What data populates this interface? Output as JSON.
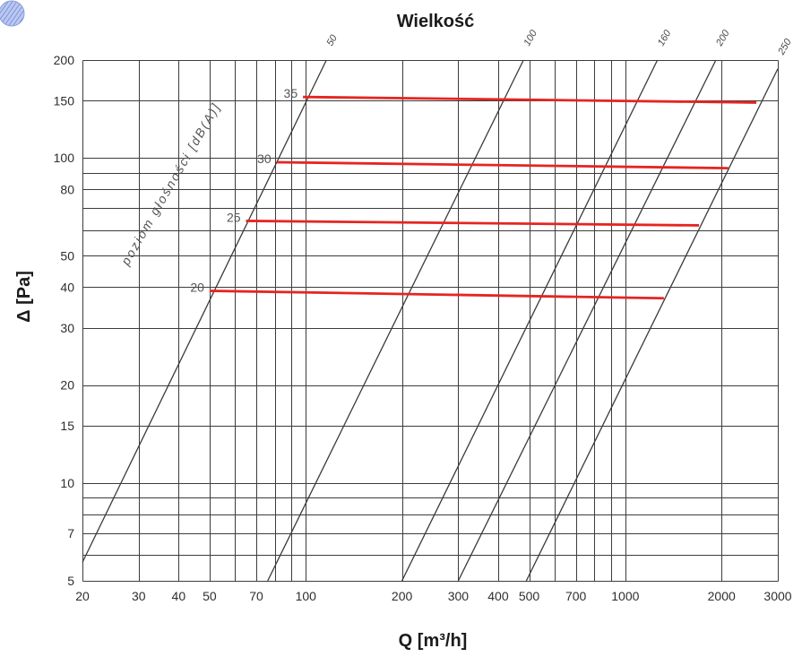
{
  "decoration": {
    "icon": "decorative-disc-icon"
  },
  "chart_data": {
    "type": "line",
    "title": "Wielkość",
    "xlabel": "Q [m³/h]",
    "ylabel": "Δ [Pa]",
    "x_scale": "log",
    "y_scale": "log",
    "xlim": [
      20,
      3000
    ],
    "ylim": [
      5,
      200
    ],
    "grid": true,
    "x_ticks": [
      20,
      30,
      40,
      50,
      70,
      100,
      200,
      300,
      400,
      500,
      700,
      1000,
      2000,
      3000
    ],
    "y_ticks": [
      5,
      7,
      10,
      15,
      20,
      30,
      40,
      50,
      80,
      100,
      150,
      200
    ],
    "x_gridlines": [
      20,
      30,
      40,
      50,
      60,
      70,
      80,
      90,
      100,
      200,
      300,
      400,
      500,
      600,
      700,
      800,
      900,
      1000,
      2000,
      3000
    ],
    "y_gridlines": [
      5,
      6,
      7,
      8,
      9,
      10,
      15,
      20,
      30,
      40,
      50,
      60,
      70,
      80,
      90,
      100,
      150,
      200
    ],
    "series": [
      {
        "name": "50",
        "color": "#3a3a3a",
        "points": [
          [
            20,
            5.7
          ],
          [
            116,
            200
          ]
        ]
      },
      {
        "name": "100",
        "color": "#3a3a3a",
        "points": [
          [
            76,
            5
          ],
          [
            480,
            200
          ]
        ]
      },
      {
        "name": "160",
        "color": "#3a3a3a",
        "points": [
          [
            200,
            5
          ],
          [
            1260,
            200
          ]
        ]
      },
      {
        "name": "200",
        "color": "#3a3a3a",
        "points": [
          [
            300,
            5
          ],
          [
            1920,
            200
          ]
        ]
      },
      {
        "name": "250",
        "color": "#3a3a3a",
        "points": [
          [
            490,
            5
          ],
          [
            3000,
            188
          ]
        ]
      }
    ],
    "noise_label": "poziom głośności [dB(A)]",
    "noise_lines": [
      {
        "name": "35",
        "color": "#e52521",
        "points": [
          [
            98,
            154
          ],
          [
            2570,
            148
          ]
        ]
      },
      {
        "name": "30",
        "color": "#e52521",
        "points": [
          [
            81,
            97
          ],
          [
            2100,
            93
          ]
        ]
      },
      {
        "name": "25",
        "color": "#e52521",
        "points": [
          [
            65,
            64
          ],
          [
            1700,
            62
          ]
        ]
      },
      {
        "name": "20",
        "color": "#e52521",
        "points": [
          [
            50,
            39
          ],
          [
            1320,
            37
          ]
        ]
      }
    ]
  }
}
